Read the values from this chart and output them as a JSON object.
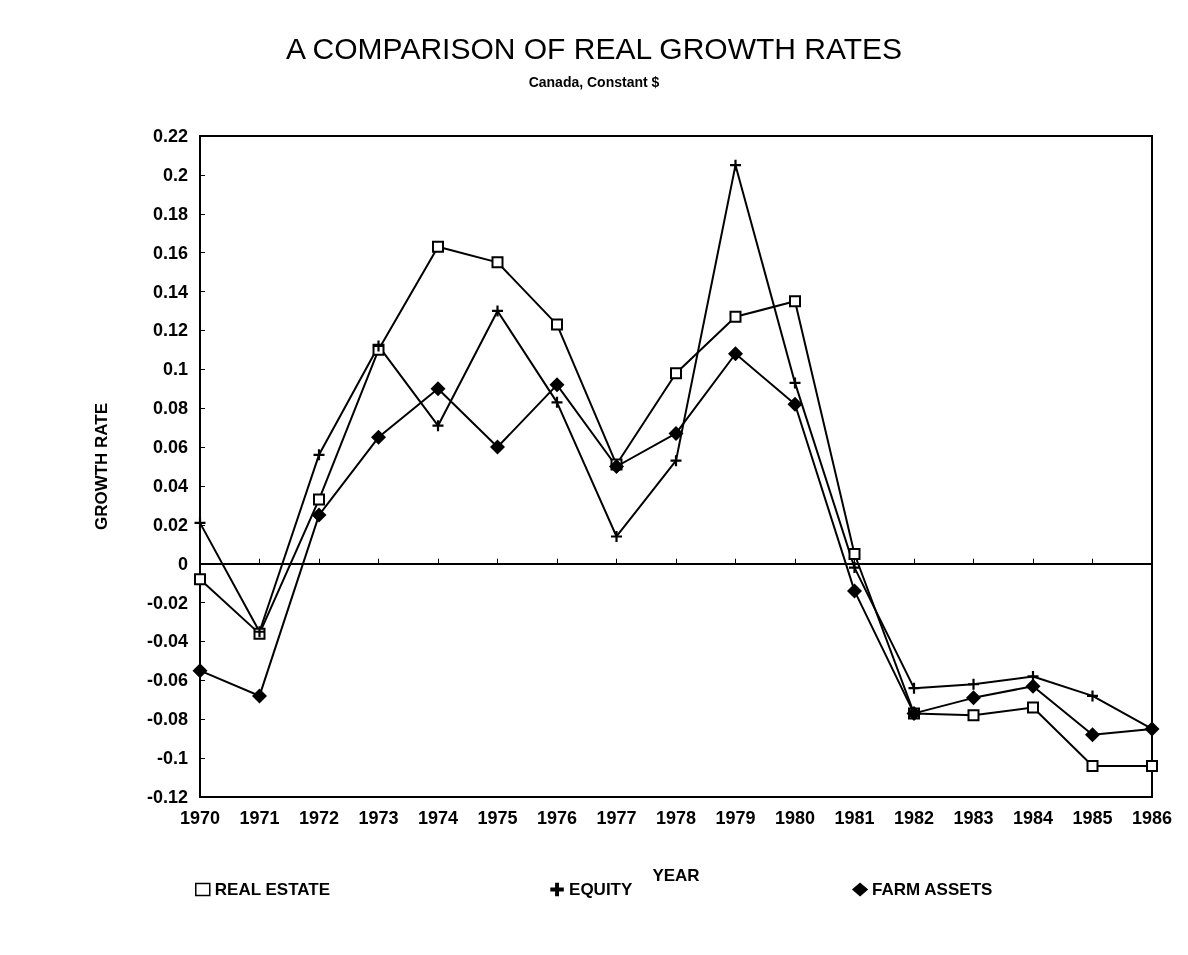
{
  "chart_data": {
    "type": "line",
    "title": "A COMPARISON OF REAL GROWTH RATES",
    "subtitle": "Canada, Constant $",
    "xlabel": "YEAR",
    "ylabel": "GROWTH RATE",
    "categories": [
      "1970",
      "1971",
      "1972",
      "1973",
      "1974",
      "1975",
      "1976",
      "1977",
      "1978",
      "1979",
      "1980",
      "1981",
      "1982",
      "1983",
      "1984",
      "1985",
      "1986"
    ],
    "series": [
      {
        "name": "REAL ESTATE",
        "color": "#000000",
        "marker": "square",
        "values": [
          -0.008,
          -0.036,
          0.033,
          0.11,
          0.163,
          0.155,
          0.123,
          0.051,
          0.098,
          0.127,
          0.135,
          0.005,
          -0.077,
          -0.078,
          -0.074,
          -0.104,
          -0.104
        ]
      },
      {
        "name": "EQUITY",
        "color": "#000000",
        "marker": "cross",
        "values": [
          0.021,
          -0.035,
          0.056,
          0.112,
          0.071,
          0.13,
          0.083,
          0.014,
          0.053,
          0.205,
          0.093,
          -0.002,
          -0.064,
          -0.062,
          -0.058,
          -0.068,
          -0.085
        ]
      },
      {
        "name": "FARM ASSETS",
        "color": "#000000",
        "marker": "diamond",
        "values": [
          -0.055,
          -0.068,
          0.025,
          0.065,
          0.09,
          0.06,
          0.092,
          0.05,
          0.067,
          0.108,
          0.082,
          -0.014,
          -0.077,
          -0.069,
          -0.063,
          -0.088,
          -0.085
        ]
      }
    ],
    "ylim": [
      -0.12,
      0.22
    ],
    "yticks": [
      -0.12,
      -0.1,
      -0.08,
      -0.06,
      -0.04,
      -0.02,
      0,
      0.02,
      0.04,
      0.06,
      0.08,
      0.1,
      0.12,
      0.14,
      0.16,
      0.18,
      0.2,
      0.22
    ],
    "ref_lines": [
      {
        "axis": "y",
        "value": 0,
        "color": "#000000"
      }
    ],
    "grid": false,
    "legend": "bottom",
    "line_style": "solid"
  }
}
